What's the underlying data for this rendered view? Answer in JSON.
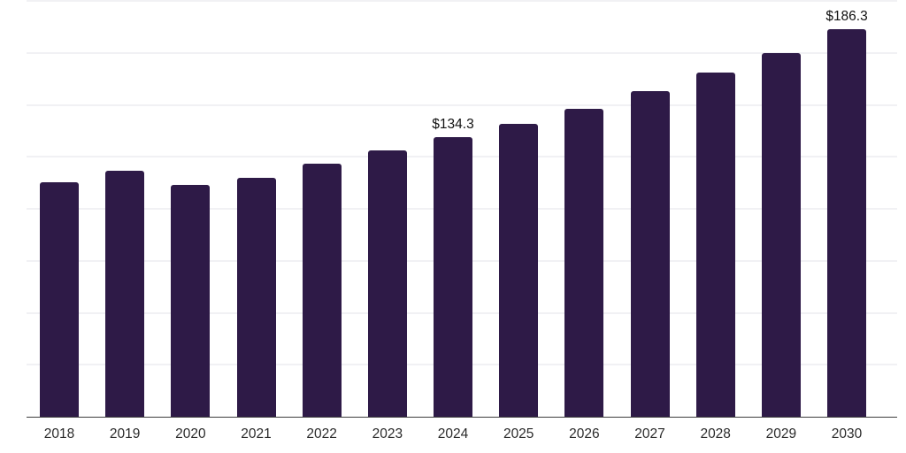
{
  "chart_data": {
    "type": "bar",
    "title": "",
    "xlabel": "",
    "ylabel": "",
    "categories": [
      "2018",
      "2019",
      "2020",
      "2021",
      "2022",
      "2023",
      "2024",
      "2025",
      "2026",
      "2027",
      "2028",
      "2029",
      "2030"
    ],
    "values": [
      112.9,
      118.1,
      111.6,
      114.7,
      121.8,
      128.1,
      134.3,
      140.8,
      148.1,
      156.4,
      165.6,
      175.0,
      186.3
    ],
    "value_labels": [
      {
        "category": "2024",
        "text": "$134.3"
      },
      {
        "category": "2030",
        "text": "$186.3"
      }
    ],
    "ylim": [
      0,
      200
    ],
    "gridline_step": 25,
    "grid": "horizontal",
    "legend": "none",
    "y_tick_labels_visible": false,
    "colors": {
      "bar": "#2E1A47",
      "gridline": "#F1F1F4",
      "axis_line": "#3D3D3D",
      "tick_label": "#2B2B2B",
      "value_label": "#111111",
      "background": "#FFFFFF"
    }
  }
}
